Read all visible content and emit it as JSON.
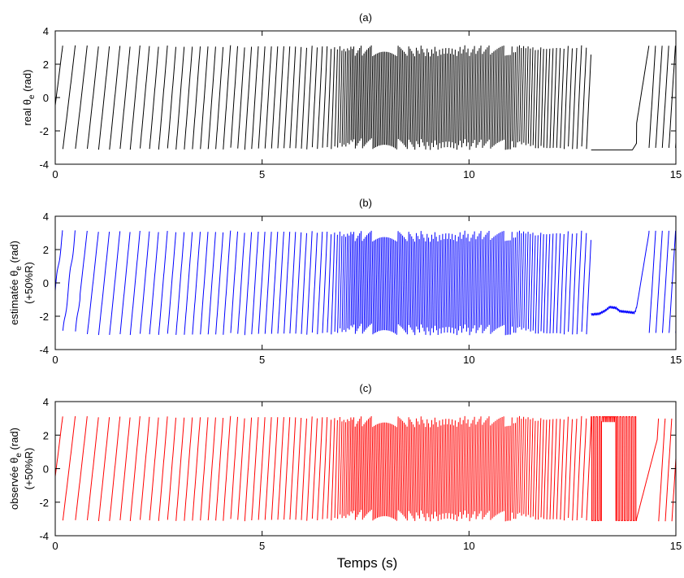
{
  "figure": {
    "xlabel": "Temps (s)"
  },
  "chart_data": [
    {
      "type": "line",
      "title": "(a)",
      "ylabel_lines": [
        "real θ",
        "e",
        "(rad)"
      ],
      "xlim": [
        0,
        15
      ],
      "ylim": [
        -4,
        4
      ],
      "xticks": [
        "0",
        "5",
        "10",
        "15"
      ],
      "yticks": [
        "4",
        "2",
        "0",
        "-2",
        "-4"
      ],
      "grid": false,
      "series": [
        {
          "color": "#000000",
          "style": "sawtooth"
        }
      ],
      "y_range_of_wrap": [
        -3.14,
        3.14
      ],
      "features": {
        "sawtooth_periods_s": [
          [
            0.0,
            0.35
          ],
          [
            3.0,
            0.2
          ],
          [
            6.5,
            0.12
          ],
          [
            7.0,
            0.05
          ],
          [
            11.0,
            0.06
          ],
          [
            12.8,
            0.14
          ]
        ],
        "stall_interval_s": [
          12.95,
          14.0
        ],
        "stall_level": -3.14
      }
    },
    {
      "type": "line",
      "title": "(b)",
      "ylabel_lines": [
        "estimatée θ",
        "e",
        "(rad)",
        "(+50%R)"
      ],
      "xlim": [
        0,
        15
      ],
      "ylim": [
        -4,
        4
      ],
      "xticks": [
        "0",
        "5",
        "10",
        "15"
      ],
      "yticks": [
        "4",
        "2",
        "0",
        "-2",
        "-4"
      ],
      "grid": false,
      "series": [
        {
          "color": "#0000ff",
          "style": "sawtooth"
        }
      ],
      "y_range_of_wrap": [
        -3.14,
        3.14
      ],
      "features": {
        "stall_interval_s": [
          12.95,
          14.2
        ],
        "stall_values": [
          [
            12.95,
            -1.9
          ],
          [
            13.2,
            -1.8
          ],
          [
            13.5,
            -1.5
          ],
          [
            13.7,
            -1.6
          ],
          [
            14.0,
            -1.8
          ],
          [
            14.2,
            -1.0
          ]
        ]
      }
    },
    {
      "type": "line",
      "title": "(c)",
      "ylabel_lines": [
        "observée θ",
        "e",
        "(rad)",
        "(+50%R)"
      ],
      "xlim": [
        0,
        15
      ],
      "ylim": [
        -4,
        4
      ],
      "xticks": [
        "0",
        "5",
        "10",
        "15"
      ],
      "yticks": [
        "4",
        "2",
        "0",
        "-2",
        "-4"
      ],
      "grid": false,
      "series": [
        {
          "color": "#ff0000",
          "style": "sawtooth"
        }
      ],
      "y_range_of_wrap": [
        -3.14,
        3.14
      ],
      "features": {
        "chatter_interval_s": [
          12.95,
          14.0
        ]
      }
    }
  ]
}
